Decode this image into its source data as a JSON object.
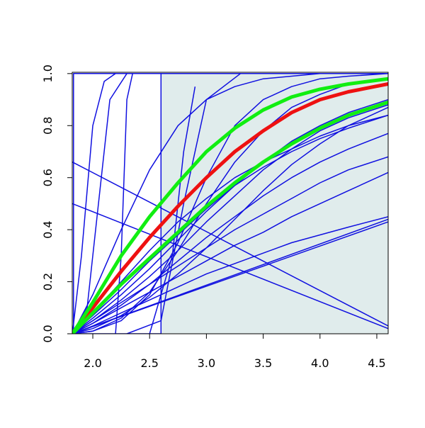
{
  "chart_data": {
    "type": "line",
    "xlim": [
      1.819,
      4.6
    ],
    "ylim": [
      0,
      1.005
    ],
    "xticks": [
      {
        "value": 2.0,
        "label": "2.0"
      },
      {
        "value": 2.5,
        "label": "2.5"
      },
      {
        "value": 3.0,
        "label": "3.0"
      },
      {
        "value": 3.5,
        "label": "3.5"
      },
      {
        "value": 4.0,
        "label": "4.0"
      },
      {
        "value": 4.5,
        "label": "4.5"
      }
    ],
    "yticks": [
      {
        "value": 0,
        "label": "0.0"
      },
      {
        "value": 0.2,
        "label": "0.2"
      },
      {
        "value": 0.4,
        "label": "0.4"
      },
      {
        "value": 0.6,
        "label": "0.6"
      },
      {
        "value": 0.8,
        "label": "0.8"
      },
      {
        "value": 1.0,
        "label": "1.0"
      }
    ],
    "band": {
      "color": "#e0ecec",
      "x": [
        2.6,
        4.6
      ],
      "values": [
        0,
        1
      ]
    },
    "x": [
      1.82,
      2.0,
      2.25,
      2.5,
      2.75,
      3.0,
      3.25,
      3.5,
      3.75,
      4.0,
      4.25,
      4.6
    ],
    "series": [
      {
        "color": "#1010e0",
        "values": [
          0,
          0.05,
          0.12,
          0.19,
          0.26,
          0.33,
          0.4,
          0.46,
          0.52,
          0.58,
          0.63,
          0.68
        ]
      },
      {
        "color": "#1010e0",
        "values": [
          0,
          0.04,
          0.1,
          0.16,
          0.22,
          0.28,
          0.34,
          0.39,
          0.45,
          0.5,
          0.55,
          0.62
        ]
      },
      {
        "color": "#1010e0",
        "values": [
          0,
          0.06,
          0.15,
          0.25,
          0.36,
          0.47,
          0.57,
          0.66,
          0.74,
          0.8,
          0.85,
          0.9
        ]
      },
      {
        "color": "#1010e0",
        "values": [
          0,
          0.03,
          0.08,
          0.13,
          0.18,
          0.23,
          0.27,
          0.31,
          0.35,
          0.38,
          0.41,
          0.45
        ]
      },
      {
        "color": "#1010e0",
        "values": [
          0,
          0.07,
          0.17,
          0.28,
          0.38,
          0.48,
          0.57,
          0.64,
          0.7,
          0.75,
          0.79,
          0.84
        ]
      },
      {
        "color": "#1010e0",
        "values": [
          0,
          0.05,
          0.13,
          0.22,
          0.32,
          0.43,
          0.53,
          0.63,
          0.71,
          0.78,
          0.83,
          0.88
        ]
      },
      {
        "color": "#1010e0",
        "values": [
          0,
          0.02,
          0.07,
          0.14,
          0.23,
          0.33,
          0.44,
          0.55,
          0.65,
          0.73,
          0.8,
          0.87
        ]
      },
      {
        "color": "#1010e0",
        "values": [
          0,
          0.01,
          0.06,
          0.16,
          0.32,
          0.5,
          0.66,
          0.78,
          0.87,
          0.92,
          0.96,
          0.98
        ]
      },
      {
        "color": "#1010e0",
        "values": [
          0,
          0.01,
          0.05,
          0.15,
          0.35,
          0.6,
          0.8,
          0.9,
          0.95,
          0.98,
          0.99,
          1.0
        ]
      },
      {
        "color": "#1010e0",
        "values": [
          0,
          0.08,
          0.2,
          0.32,
          0.43,
          0.52,
          0.6,
          0.66,
          0.71,
          0.76,
          0.8,
          0.84
        ]
      },
      {
        "color": "#1010e0",
        "values": [
          0,
          0.04,
          0.11,
          0.19,
          0.28,
          0.37,
          0.45,
          0.53,
          0.6,
          0.66,
          0.71,
          0.77
        ]
      },
      {
        "color": "#1010e0",
        "values": [
          0,
          0.15,
          0.4,
          0.63,
          0.8,
          0.9,
          0.95,
          0.98,
          0.99,
          1.0,
          1.0,
          1.0
        ]
      },
      {
        "color": "#1010e0",
        "x": [
          1.82,
          4.6
        ],
        "values": [
          0.66,
          0.03
        ]
      },
      {
        "color": "#1010e0",
        "x": [
          1.82,
          4.6
        ],
        "values": [
          0.5,
          0.02
        ]
      },
      {
        "color": "#1010e0",
        "x": [
          1.82,
          4.6
        ],
        "values": [
          0,
          0.44
        ]
      },
      {
        "color": "#1010e0",
        "x": [
          1.82,
          4.6
        ],
        "values": [
          0,
          0.43
        ]
      },
      {
        "color": "#1010e0",
        "x": [
          1.82,
          1.9,
          2.0,
          2.1,
          2.2
        ],
        "values": [
          0,
          0.3,
          0.8,
          0.97,
          1
        ]
      },
      {
        "color": "#1010e0",
        "x": [
          1.82,
          1.95,
          2.05,
          2.15,
          2.3
        ],
        "values": [
          0,
          0.1,
          0.5,
          0.9,
          1
        ]
      },
      {
        "color": "#1010e0",
        "x": [
          2.2,
          2.25,
          2.3,
          2.35
        ],
        "values": [
          0,
          0.3,
          0.9,
          1
        ]
      },
      {
        "color": "#1010e0",
        "x": [
          1.82,
          2.6,
          2.6,
          4.6
        ],
        "values": [
          0,
          0,
          1,
          1
        ]
      },
      {
        "color": "#1010e0",
        "x": [
          1.83,
          1.83,
          4.6
        ],
        "values": [
          0,
          1,
          1
        ]
      },
      {
        "color": "#1010e0",
        "x": [
          2.3,
          2.6,
          2.8,
          3.0,
          3.3
        ],
        "values": [
          0,
          0.05,
          0.5,
          0.9,
          1
        ]
      },
      {
        "color": "#1010e0",
        "x": [
          2.5,
          2.7,
          2.8,
          2.9
        ],
        "values": [
          0,
          0.3,
          0.7,
          0.95
        ]
      },
      {
        "color": "#ee1111",
        "width": 5,
        "values": [
          0,
          0.1,
          0.24,
          0.37,
          0.49,
          0.6,
          0.7,
          0.78,
          0.85,
          0.9,
          0.93,
          0.96
        ]
      },
      {
        "color": "#11ee11",
        "width": 5,
        "values": [
          0,
          0.12,
          0.3,
          0.45,
          0.58,
          0.7,
          0.79,
          0.86,
          0.91,
          0.94,
          0.96,
          0.98
        ]
      },
      {
        "color": "#11ee11",
        "width": 5,
        "values": [
          0,
          0.08,
          0.19,
          0.29,
          0.39,
          0.49,
          0.58,
          0.66,
          0.73,
          0.79,
          0.84,
          0.89
        ]
      }
    ]
  }
}
